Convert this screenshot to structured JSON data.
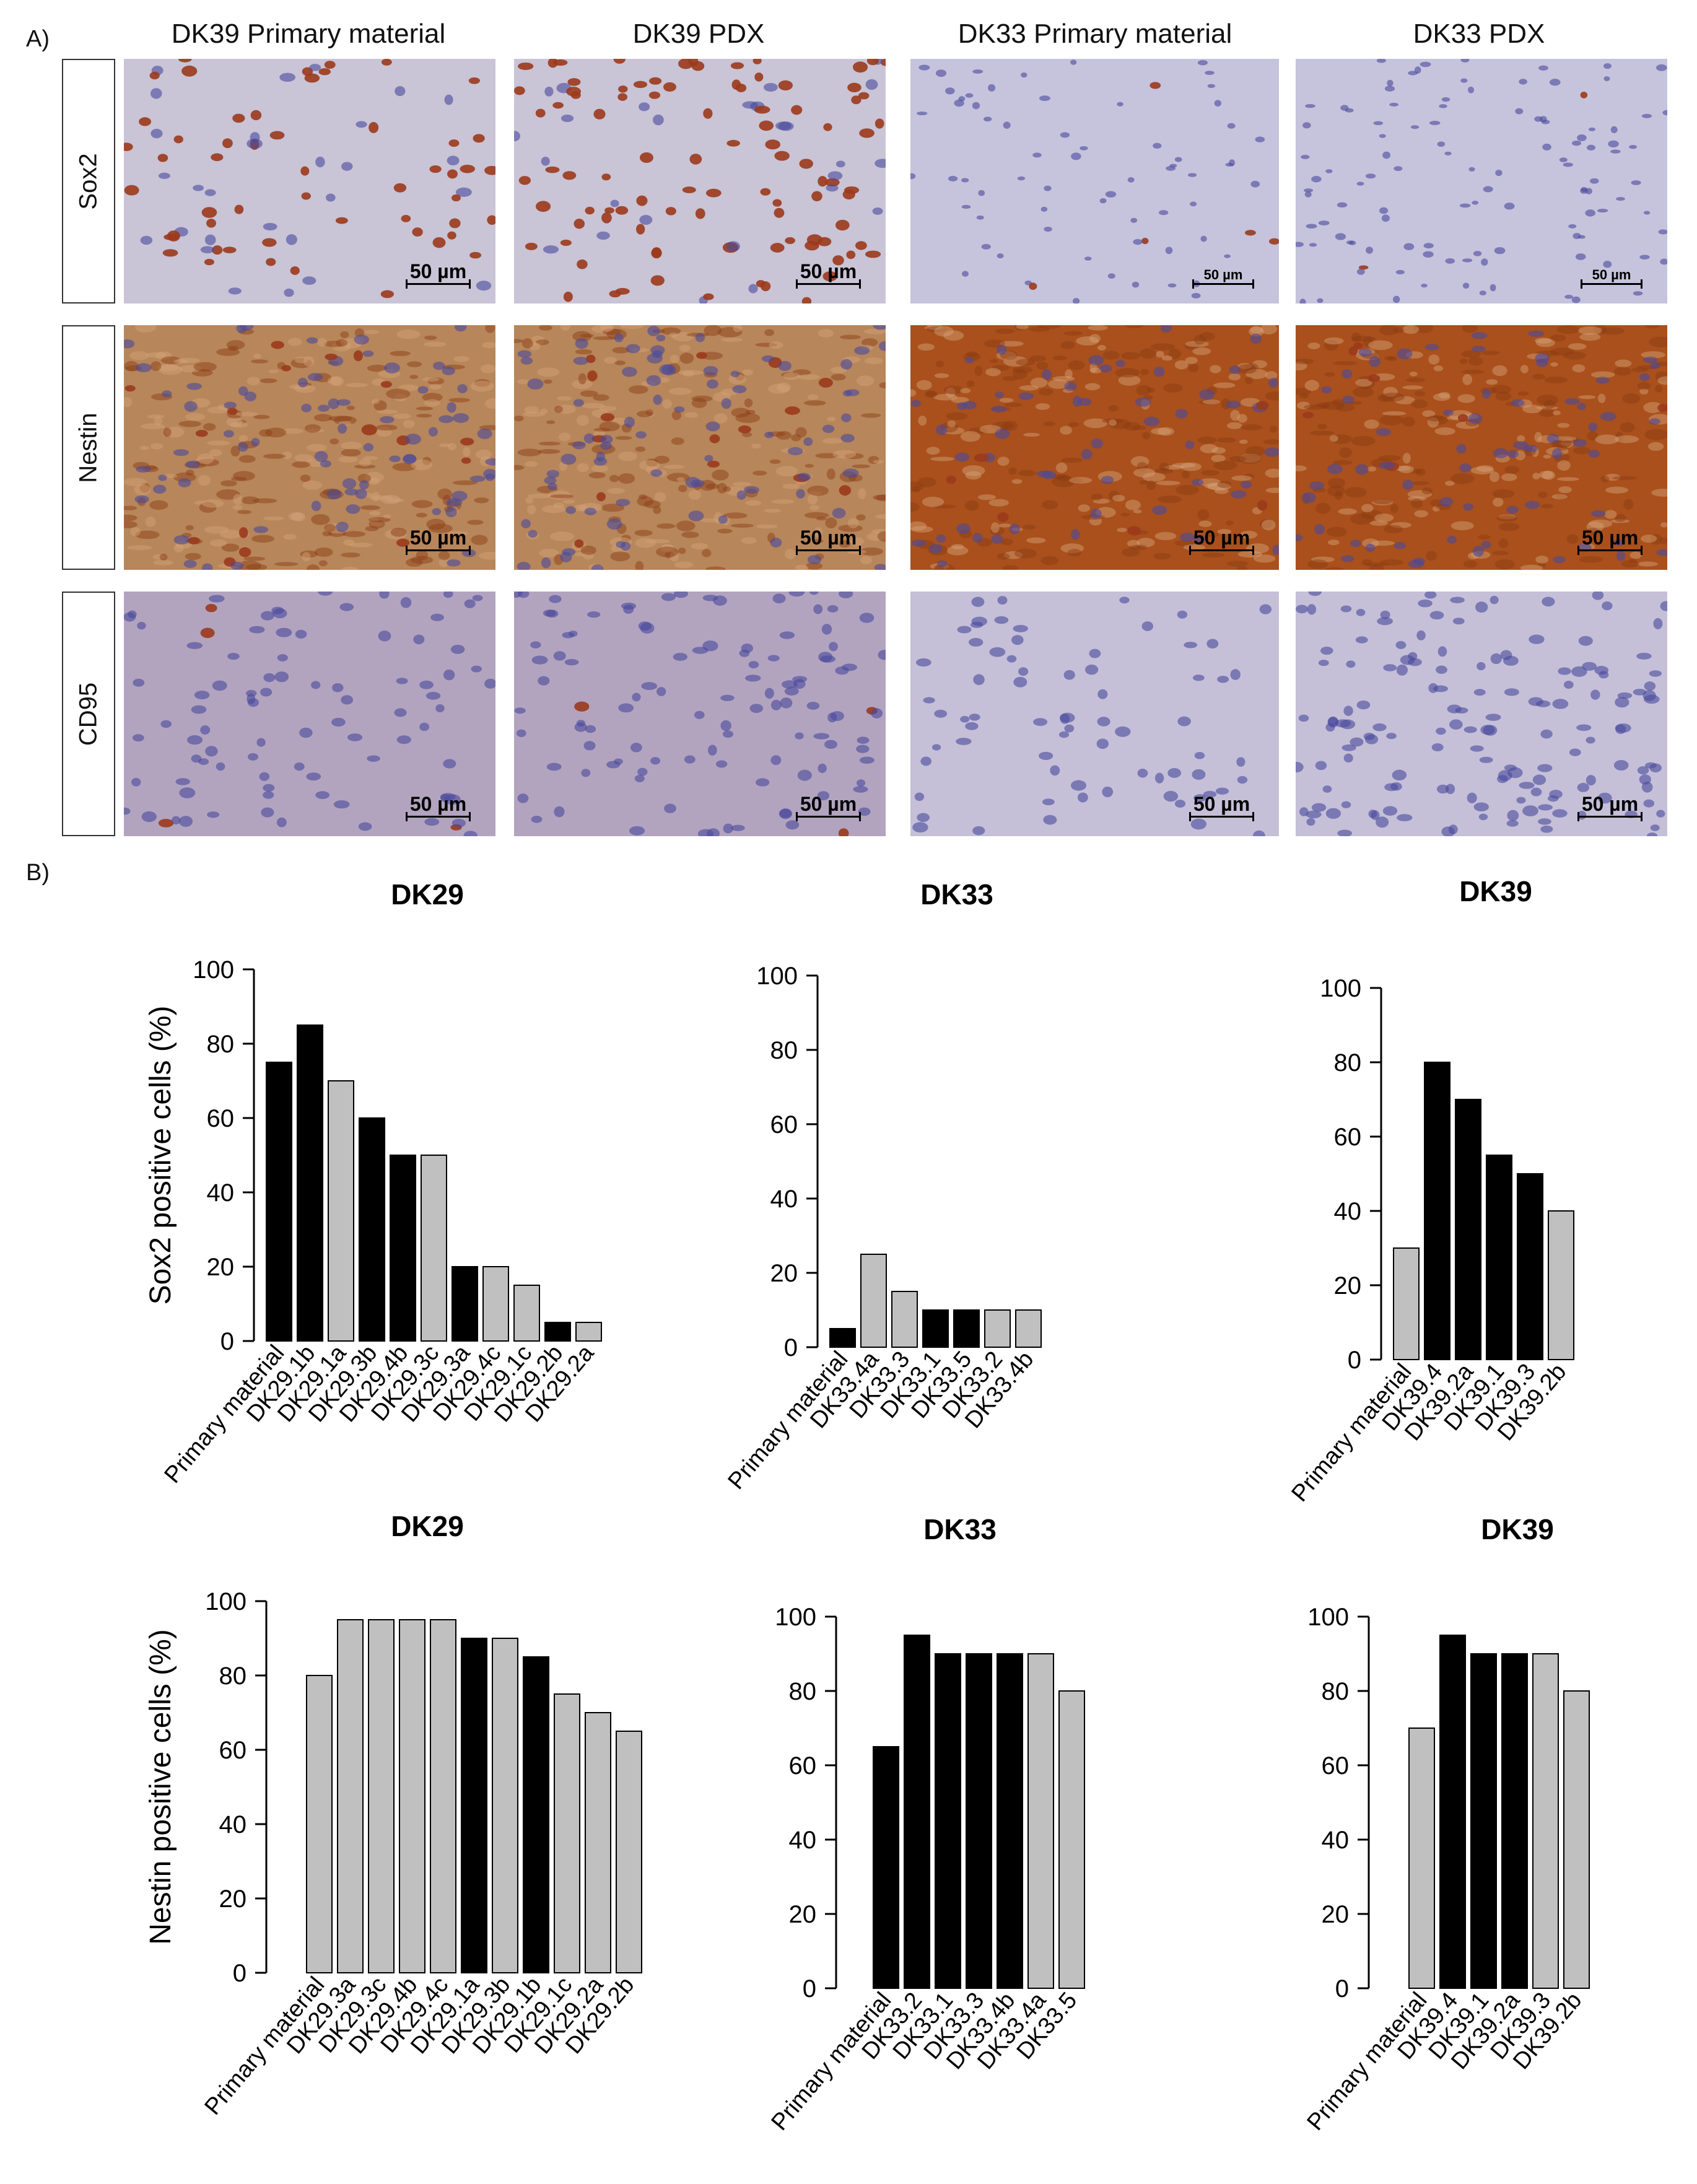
{
  "panel_a": {
    "label": "A)",
    "columns": [
      "DK39 Primary material",
      "DK39 PDX",
      "DK33 Primary material",
      "DK33 PDX"
    ],
    "rows": [
      "Sox2",
      "Nestin",
      "CD95"
    ],
    "scale_bar": "50 µm",
    "tile_colors": {
      "sox2_dk39": "#c9c4d6",
      "sox2_dk33": "#c6c3dc",
      "nestin_dk39": "#b7865a",
      "nestin_dk33": "#a9501c",
      "cd95_dk39": "#b2a4bf",
      "cd95_dk33": "#c5c0d8",
      "brown_nuclei": "#9b3a1c",
      "blue_nuclei": "#4a4a9c"
    }
  },
  "panel_b": {
    "label": "B)",
    "colors": {
      "black": "#000000",
      "grey": "#c0c0c0"
    }
  },
  "chart_data": [
    {
      "type": "bar",
      "title": "DK29",
      "ylabel": "Sox2 positive cells (%)",
      "ylim": [
        0,
        100
      ],
      "yticks": [
        "0",
        "20",
        "40",
        "60",
        "80",
        "100"
      ],
      "categories": [
        "Primary material",
        "DK29.1b",
        "DK29.1a",
        "DK29.3b",
        "DK29.4b",
        "DK29.3c",
        "DK29.3a",
        "DK29.4c",
        "DK29.1c",
        "DK29.2b",
        "DK29.2a"
      ],
      "values": [
        75,
        85,
        70,
        60,
        50,
        50,
        20,
        20,
        15,
        5,
        5
      ],
      "colors": [
        "black",
        "black",
        "grey",
        "black",
        "black",
        "grey",
        "black",
        "grey",
        "grey",
        "black",
        "grey"
      ]
    },
    {
      "type": "bar",
      "title": "DK33",
      "ylabel": "",
      "ylim": [
        0,
        100
      ],
      "yticks": [
        "0",
        "20",
        "40",
        "60",
        "80",
        "100"
      ],
      "categories": [
        "Primary material",
        "DK33.4a",
        "DK33.3",
        "DK33.1",
        "DK33.5",
        "DK33.2",
        "DK33.4b"
      ],
      "values": [
        5,
        25,
        15,
        10,
        10,
        10,
        10
      ],
      "colors": [
        "black",
        "grey",
        "grey",
        "black",
        "black",
        "grey",
        "grey"
      ]
    },
    {
      "type": "bar",
      "title": "DK39",
      "ylabel": "",
      "ylim": [
        0,
        100
      ],
      "yticks": [
        "0",
        "20",
        "40",
        "60",
        "80",
        "100"
      ],
      "categories": [
        "Primary material",
        "DK39.4",
        "DK39.2a",
        "DK39.1",
        "DK39.3",
        "DK39.2b"
      ],
      "values": [
        30,
        80,
        70,
        55,
        50,
        40
      ],
      "colors": [
        "grey",
        "black",
        "black",
        "black",
        "black",
        "grey"
      ]
    },
    {
      "type": "bar",
      "title": "DK29",
      "ylabel": "Nestin positive cells (%)",
      "ylim": [
        0,
        100
      ],
      "yticks": [
        "0",
        "20",
        "40",
        "60",
        "80",
        "100"
      ],
      "categories": [
        "Primary material",
        "DK29.3a",
        "DK29.3c",
        "DK29.4b",
        "DK29.4c",
        "DK29.1a",
        "DK29.3b",
        "DK29.1b",
        "DK29.1c",
        "DK29.2a",
        "DK29.2b"
      ],
      "values": [
        80,
        95,
        95,
        95,
        95,
        90,
        90,
        85,
        75,
        70,
        65
      ],
      "colors": [
        "grey",
        "grey",
        "grey",
        "grey",
        "grey",
        "black",
        "grey",
        "black",
        "grey",
        "grey",
        "grey"
      ]
    },
    {
      "type": "bar",
      "title": "DK33",
      "ylabel": "",
      "ylim": [
        0,
        100
      ],
      "yticks": [
        "0",
        "20",
        "40",
        "60",
        "80",
        "100"
      ],
      "categories": [
        "Primary material",
        "DK33.2",
        "DK33.1",
        "DK33.3",
        "DK33.4b",
        "DK33.4a",
        "DK33.5"
      ],
      "values": [
        65,
        95,
        90,
        90,
        90,
        90,
        80
      ],
      "colors": [
        "black",
        "black",
        "black",
        "black",
        "black",
        "grey",
        "grey"
      ]
    },
    {
      "type": "bar",
      "title": "DK39",
      "ylabel": "",
      "ylim": [
        0,
        100
      ],
      "yticks": [
        "0",
        "20",
        "40",
        "60",
        "80",
        "100"
      ],
      "categories": [
        "Primary material",
        "DK39.4",
        "DK39.1",
        "DK39.2a",
        "DK39.3",
        "DK39.2b"
      ],
      "values": [
        70,
        95,
        90,
        90,
        90,
        80
      ],
      "colors": [
        "grey",
        "black",
        "black",
        "black",
        "grey",
        "grey"
      ]
    }
  ]
}
